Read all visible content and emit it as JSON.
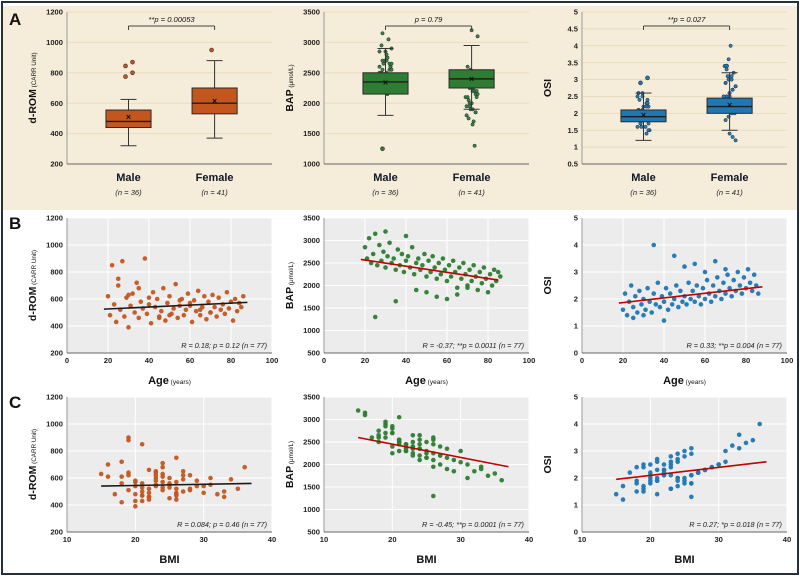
{
  "figure": {
    "panels": {
      "a": "A",
      "b": "B",
      "c": "C"
    }
  },
  "subjects": {
    "age": [
      20,
      21,
      22,
      23,
      24,
      25,
      26,
      27,
      28,
      29,
      30,
      31,
      32,
      33,
      34,
      35,
      36,
      37,
      38,
      39,
      40,
      41,
      42,
      43,
      44,
      45,
      46,
      47,
      48,
      49,
      50,
      51,
      52,
      53,
      54,
      55,
      56,
      57,
      58,
      59,
      60,
      61,
      62,
      63,
      64,
      65,
      66,
      67,
      68,
      69,
      70,
      71,
      72,
      73,
      74,
      75,
      76,
      77,
      78,
      79,
      80,
      81,
      82,
      83,
      84,
      85,
      86,
      25,
      35,
      45,
      55,
      65,
      40,
      50,
      60,
      30,
      70
    ],
    "bmi": [
      19,
      17,
      21,
      18,
      20,
      16,
      22,
      19,
      21,
      18,
      20,
      23,
      19,
      21,
      18,
      22,
      20,
      24,
      19,
      22,
      21,
      18,
      23,
      20,
      25,
      21,
      19,
      24,
      22,
      20,
      23,
      26,
      21,
      24,
      22,
      25,
      23,
      20,
      26,
      23,
      24,
      21,
      27,
      24,
      22,
      26,
      23,
      28,
      25,
      23,
      27,
      24,
      29,
      26,
      24,
      28,
      25,
      30,
      27,
      25,
      29,
      26,
      31,
      28,
      26,
      30,
      27,
      26,
      36,
      33,
      34,
      35,
      16,
      32,
      31,
      15,
      33
    ],
    "drom": [
      620,
      480,
      850,
      560,
      430,
      700,
      520,
      880,
      470,
      610,
      390,
      550,
      640,
      500,
      720,
      460,
      580,
      530,
      900,
      490,
      560,
      420,
      650,
      540,
      600,
      470,
      510,
      680,
      440,
      570,
      620,
      490,
      530,
      710,
      460,
      550,
      600,
      480,
      520,
      640,
      570,
      430,
      590,
      510,
      660,
      480,
      540,
      620,
      450,
      580,
      500,
      630,
      540,
      470,
      610,
      520,
      560,
      490,
      650,
      530,
      580,
      440,
      600,
      510,
      570,
      540,
      620,
      750,
      680,
      460,
      590,
      520,
      610,
      480,
      550,
      630,
      500
    ],
    "bap": [
      2850,
      2600,
      3050,
      2500,
      2700,
      3150,
      2450,
      2900,
      2550,
      2750,
      2400,
      2650,
      2950,
      2500,
      2600,
      2350,
      2800,
      2450,
      2700,
      2300,
      2550,
      2650,
      2400,
      2850,
      2250,
      2500,
      2600,
      2350,
      2450,
      2700,
      2200,
      2550,
      2300,
      2650,
      2400,
      2150,
      2500,
      2250,
      2600,
      2350,
      2100,
      2450,
      2200,
      2550,
      2300,
      1950,
      2400,
      2150,
      2500,
      2250,
      2000,
      2350,
      2100,
      2450,
      2200,
      1900,
      2300,
      2050,
      2400,
      2150,
      1850,
      2250,
      2000,
      2350,
      2100,
      2300,
      2200,
      1300,
      1650,
      1900,
      1750,
      1800,
      3100,
      1850,
      1700,
      3200,
      1950
    ],
    "osi": [
      1.6,
      2.2,
      1.4,
      1.9,
      2.5,
      1.7,
      2.1,
      1.5,
      2.3,
      1.8,
      2.0,
      1.6,
      2.4,
      1.9,
      1.5,
      2.2,
      1.8,
      2.6,
      1.7,
      2.1,
      1.9,
      2.4,
      1.6,
      2.2,
      1.8,
      2.0,
      2.5,
      1.7,
      2.3,
      1.9,
      2.1,
      1.8,
      2.6,
      2.0,
      2.3,
      1.9,
      2.5,
      2.1,
      1.8,
      2.4,
      2.0,
      2.7,
      2.2,
      1.9,
      2.5,
      2.1,
      2.8,
      2.3,
      2.0,
      2.6,
      2.2,
      2.9,
      2.4,
      2.1,
      2.7,
      2.3,
      3.0,
      2.5,
      2.2,
      2.8,
      2.4,
      3.1,
      2.6,
      2.3,
      2.9,
      2.5,
      2.2,
      1.3,
      4.0,
      3.6,
      3.3,
      3.4,
      1.2,
      3.2,
      3.0,
      1.4,
      3.1
    ]
  },
  "chart_data": [
    {
      "id": "a-drom",
      "type": "box",
      "color": "#c3561f",
      "grid": "#e8dcc0",
      "ylabel": "d-ROM",
      "ylabel_sub": "(CARR Unit)",
      "ylim": [
        200,
        1200
      ],
      "yticks": [
        200,
        400,
        600,
        800,
        1000,
        1200
      ],
      "annotation": "**p = 0.00053",
      "groups": [
        {
          "label": "Male",
          "n_label": "(n = 36)",
          "lo": 320,
          "q1": 440,
          "median": 480,
          "mean": 510,
          "q3": 555,
          "hi": 625,
          "outliers": [
            775,
            800,
            845,
            870
          ]
        },
        {
          "label": "Female",
          "n_label": "(n = 41)",
          "lo": 370,
          "q1": 530,
          "median": 600,
          "mean": 615,
          "q3": 700,
          "hi": 880,
          "outliers": [
            950
          ]
        }
      ]
    },
    {
      "id": "a-bap",
      "type": "box",
      "color": "#2e7d32",
      "grid": "#e8dcc0",
      "points_ref": "bap",
      "ylabel": "BAP",
      "ylabel_sub": "(μmol/L)",
      "ylim": [
        1000,
        3500
      ],
      "yticks": [
        1000,
        1500,
        2000,
        2500,
        3000,
        3500
      ],
      "annotation": "p = 0.79",
      "groups": [
        {
          "label": "Male",
          "n_label": "(n = 36)",
          "lo": 1800,
          "q1": 2150,
          "median": 2350,
          "mean": 2340,
          "q3": 2500,
          "hi": 2900,
          "outliers": [
            1250
          ]
        },
        {
          "label": "Female",
          "n_label": "(n = 41)",
          "lo": 1900,
          "q1": 2250,
          "median": 2400,
          "mean": 2400,
          "q3": 2550,
          "hi": 2950,
          "outliers": []
        }
      ]
    },
    {
      "id": "a-osi",
      "type": "box",
      "color": "#1f77b4",
      "grid": "#e8dcc0",
      "points_ref": "osi",
      "ylabel": "OSI",
      "ylabel_sub": "",
      "ylim": [
        0.5,
        5
      ],
      "yticks": [
        0.5,
        1,
        1.5,
        2,
        2.5,
        3,
        3.5,
        4,
        4.5,
        5
      ],
      "annotation": "**p = 0.027",
      "groups": [
        {
          "label": "Male",
          "n_label": "(n = 36)",
          "lo": 1.2,
          "q1": 1.75,
          "median": 1.9,
          "mean": 1.95,
          "q3": 2.1,
          "hi": 2.6,
          "outliers": [
            2.9,
            3.05
          ]
        },
        {
          "label": "Female",
          "n_label": "(n = 41)",
          "lo": 1.5,
          "q1": 2.0,
          "median": 2.2,
          "mean": 2.25,
          "q3": 2.45,
          "hi": 3.2,
          "outliers": [
            3.4
          ]
        }
      ]
    },
    {
      "id": "b-drom",
      "type": "scatter",
      "color": "#c3561f",
      "bg": "#ececec",
      "grid": "#ffffff",
      "x_ref": "age",
      "y_ref": "drom",
      "xlabel": "Age",
      "xlabel_sub": "(years)",
      "xlim": [
        0,
        100
      ],
      "xticks": [
        0,
        20,
        40,
        60,
        80,
        100
      ],
      "ylabel": "d-ROM",
      "ylabel_sub": "(CARR Unit)",
      "ylim": [
        200,
        1200
      ],
      "yticks": [
        200,
        400,
        600,
        800,
        1000,
        1200
      ],
      "stats": "R = 0.18; p = 0.12 (n = 77)",
      "trend_color": "#1a1a1a",
      "trend": [
        18,
        525,
        88,
        575
      ]
    },
    {
      "id": "b-bap",
      "type": "scatter",
      "color": "#2e7d32",
      "bg": "#ececec",
      "grid": "#ffffff",
      "x_ref": "age",
      "y_ref": "bap",
      "xlabel": "Age",
      "xlabel_sub": "(years)",
      "xlim": [
        0,
        100
      ],
      "xticks": [
        0,
        20,
        40,
        60,
        80,
        100
      ],
      "ylabel": "BAP",
      "ylabel_sub": "(μmol/L)",
      "ylim": [
        500,
        3500
      ],
      "yticks": [
        500,
        1000,
        1500,
        2000,
        2500,
        3000,
        3500
      ],
      "stats": "R = -0.37; **p = 0.0011 (n = 77)",
      "trend_color": "#c00000",
      "trend": [
        18,
        2580,
        85,
        2120
      ]
    },
    {
      "id": "b-osi",
      "type": "scatter",
      "color": "#1f77b4",
      "bg": "#ececec",
      "grid": "#ffffff",
      "x_ref": "age",
      "y_ref": "osi",
      "xlabel": "Age",
      "xlabel_sub": "(years)",
      "xlim": [
        0,
        100
      ],
      "xticks": [
        0,
        20,
        40,
        60,
        80,
        100
      ],
      "ylabel": "OSI",
      "ylabel_sub": "",
      "ylim": [
        0,
        5
      ],
      "yticks": [
        0,
        1,
        2,
        3,
        4,
        5
      ],
      "stats": "R = 0.33; **p = 0.004 (n = 77)",
      "trend_color": "#c00000",
      "trend": [
        18,
        1.85,
        88,
        2.45
      ]
    },
    {
      "id": "c-drom",
      "type": "scatter",
      "color": "#c3561f",
      "bg": "#ececec",
      "grid": "#ffffff",
      "x_ref": "bmi",
      "y_ref": "drom",
      "xlabel": "BMI",
      "xlabel_sub": "",
      "xlim": [
        10,
        40
      ],
      "xticks": [
        10,
        20,
        30,
        40
      ],
      "ylabel": "d-ROM",
      "ylabel_sub": "(CARR Unit)",
      "ylim": [
        200,
        1200
      ],
      "yticks": [
        200,
        400,
        600,
        800,
        1000,
        1200
      ],
      "stats": "R = 0.084; p = 0.46 (n = 77)",
      "trend_color": "#1a1a1a",
      "trend": [
        15,
        540,
        37,
        560
      ]
    },
    {
      "id": "c-bap",
      "type": "scatter",
      "color": "#2e7d32",
      "bg": "#ececec",
      "grid": "#ffffff",
      "x_ref": "bmi",
      "y_ref": "bap",
      "xlabel": "BMI",
      "xlabel_sub": "",
      "xlim": [
        10,
        40
      ],
      "xticks": [
        10,
        20,
        30,
        40
      ],
      "ylabel": "BAP",
      "ylabel_sub": "(μmol/L)",
      "ylim": [
        500,
        3500
      ],
      "yticks": [
        500,
        1000,
        1500,
        2000,
        2500,
        3000,
        3500
      ],
      "stats": "R = -0.45; **p = 0.0001 (n = 77)",
      "trend_color": "#c00000",
      "trend": [
        15,
        2600,
        37,
        1950
      ]
    },
    {
      "id": "c-osi",
      "type": "scatter",
      "color": "#1f77b4",
      "bg": "#ececec",
      "grid": "#ffffff",
      "x_ref": "bmi",
      "y_ref": "osi",
      "xlabel": "BMI",
      "xlabel_sub": "",
      "xlim": [
        10,
        40
      ],
      "xticks": [
        10,
        20,
        30,
        40
      ],
      "ylabel": "OSI",
      "ylabel_sub": "",
      "ylim": [
        0,
        5
      ],
      "yticks": [
        0,
        1,
        2,
        3,
        4,
        5
      ],
      "stats": "R = 0.27; *p = 0.018 (n = 77)",
      "trend_color": "#c00000",
      "trend": [
        15,
        1.95,
        37,
        2.6
      ]
    }
  ]
}
